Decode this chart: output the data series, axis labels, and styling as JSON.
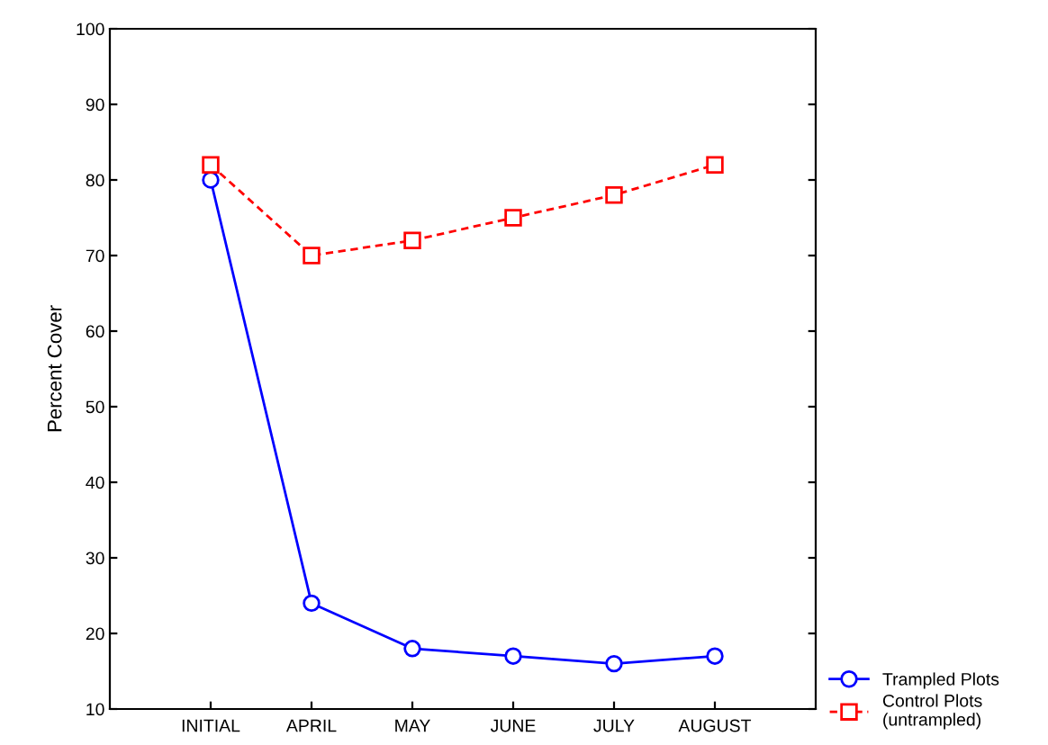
{
  "chart_data": {
    "type": "line",
    "ylabel": "Percent Cover",
    "categories": [
      "INITIAL",
      "APRIL",
      "MAY",
      "JUNE",
      "JULY",
      "AUGUST"
    ],
    "series": [
      {
        "name": "Trampled Plots",
        "color": "#0000ff",
        "values": [
          80,
          24,
          18,
          17,
          16,
          17
        ],
        "marker": "circle",
        "line_style": "solid"
      },
      {
        "name": "Control Plots\n(untrampled)",
        "color": "#ff0000",
        "values": [
          82,
          70,
          72,
          75,
          78,
          82
        ],
        "marker": "square",
        "line_style": "dashed"
      }
    ],
    "ylim": [
      10,
      100
    ],
    "yticks": [
      10,
      20,
      30,
      40,
      50,
      60,
      70,
      80,
      90,
      100
    ],
    "grid": false,
    "legend": "bottom right"
  }
}
